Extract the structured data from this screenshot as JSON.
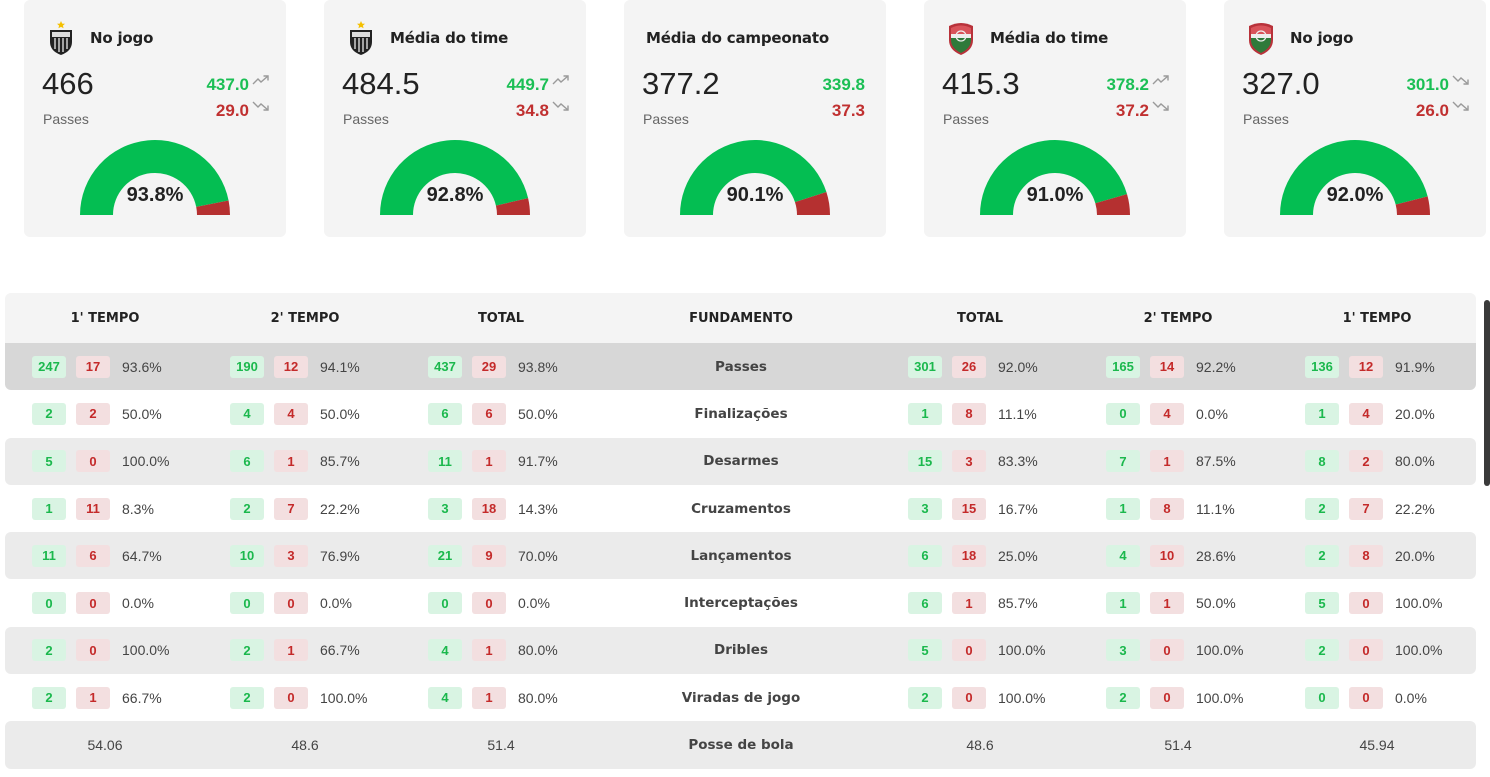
{
  "colors": {
    "good": "#1bbf55",
    "bad": "#c03030",
    "gauge_good": "#04be52",
    "gauge_bad": "#b53030"
  },
  "cards": [
    {
      "team": "atletico-mg",
      "crest": "atletico-crest-icon",
      "title": "No jogo",
      "total": "466",
      "metric": "Passes",
      "good_value": "437.0",
      "bad_value": "29.0",
      "good_trend": "up",
      "bad_trend": "down",
      "accuracy_label": "93.8%",
      "accuracy": 93.8
    },
    {
      "team": "atletico-mg",
      "crest": "atletico-crest-icon",
      "title": "Média do time",
      "total": "484.5",
      "metric": "Passes",
      "good_value": "449.7",
      "bad_value": "34.8",
      "good_trend": "up",
      "bad_trend": "down",
      "accuracy_label": "92.8%",
      "accuracy": 92.8
    },
    {
      "team": null,
      "crest": null,
      "title": "Média do campeonato",
      "total": "377.2",
      "metric": "Passes",
      "good_value": "339.8",
      "bad_value": "37.3",
      "good_trend": null,
      "bad_trend": null,
      "accuracy_label": "90.1%",
      "accuracy": 90.1
    },
    {
      "team": "fluminense",
      "crest": "fluminense-crest-icon",
      "title": "Média do time",
      "total": "415.3",
      "metric": "Passes",
      "good_value": "378.2",
      "bad_value": "37.2",
      "good_trend": "up",
      "bad_trend": "down",
      "accuracy_label": "91.0%",
      "accuracy": 91.0
    },
    {
      "team": "fluminense",
      "crest": "fluminense-crest-icon",
      "title": "No jogo",
      "total": "327.0",
      "metric": "Passes",
      "good_value": "301.0",
      "bad_value": "26.0",
      "good_trend": "down",
      "bad_trend": "down",
      "accuracy_label": "92.0%",
      "accuracy": 92.0
    }
  ],
  "table": {
    "headers": [
      "1' TEMPO",
      "2' TEMPO",
      "TOTAL",
      "FUNDAMENTO",
      "TOTAL",
      "2' TEMPO",
      "1' TEMPO"
    ],
    "rows": [
      {
        "fundamento": "Passes",
        "highlight": true,
        "left": [
          {
            "g": "247",
            "r": "17",
            "p": "93.6%"
          },
          {
            "g": "190",
            "r": "12",
            "p": "94.1%"
          },
          {
            "g": "437",
            "r": "29",
            "p": "93.8%"
          }
        ],
        "right": [
          {
            "g": "301",
            "r": "26",
            "p": "92.0%"
          },
          {
            "g": "165",
            "r": "14",
            "p": "92.2%"
          },
          {
            "g": "136",
            "r": "12",
            "p": "91.9%"
          }
        ]
      },
      {
        "fundamento": "Finalizações",
        "left": [
          {
            "g": "2",
            "r": "2",
            "p": "50.0%"
          },
          {
            "g": "4",
            "r": "4",
            "p": "50.0%"
          },
          {
            "g": "6",
            "r": "6",
            "p": "50.0%"
          }
        ],
        "right": [
          {
            "g": "1",
            "r": "8",
            "p": "11.1%"
          },
          {
            "g": "0",
            "r": "4",
            "p": "0.0%"
          },
          {
            "g": "1",
            "r": "4",
            "p": "20.0%"
          }
        ]
      },
      {
        "fundamento": "Desarmes",
        "left": [
          {
            "g": "5",
            "r": "0",
            "p": "100.0%"
          },
          {
            "g": "6",
            "r": "1",
            "p": "85.7%"
          },
          {
            "g": "11",
            "r": "1",
            "p": "91.7%"
          }
        ],
        "right": [
          {
            "g": "15",
            "r": "3",
            "p": "83.3%"
          },
          {
            "g": "7",
            "r": "1",
            "p": "87.5%"
          },
          {
            "g": "8",
            "r": "2",
            "p": "80.0%"
          }
        ]
      },
      {
        "fundamento": "Cruzamentos",
        "left": [
          {
            "g": "1",
            "r": "11",
            "p": "8.3%"
          },
          {
            "g": "2",
            "r": "7",
            "p": "22.2%"
          },
          {
            "g": "3",
            "r": "18",
            "p": "14.3%"
          }
        ],
        "right": [
          {
            "g": "3",
            "r": "15",
            "p": "16.7%"
          },
          {
            "g": "1",
            "r": "8",
            "p": "11.1%"
          },
          {
            "g": "2",
            "r": "7",
            "p": "22.2%"
          }
        ]
      },
      {
        "fundamento": "Lançamentos",
        "left": [
          {
            "g": "11",
            "r": "6",
            "p": "64.7%"
          },
          {
            "g": "10",
            "r": "3",
            "p": "76.9%"
          },
          {
            "g": "21",
            "r": "9",
            "p": "70.0%"
          }
        ],
        "right": [
          {
            "g": "6",
            "r": "18",
            "p": "25.0%"
          },
          {
            "g": "4",
            "r": "10",
            "p": "28.6%"
          },
          {
            "g": "2",
            "r": "8",
            "p": "20.0%"
          }
        ]
      },
      {
        "fundamento": "Interceptações",
        "left": [
          {
            "g": "0",
            "r": "0",
            "p": "0.0%"
          },
          {
            "g": "0",
            "r": "0",
            "p": "0.0%"
          },
          {
            "g": "0",
            "r": "0",
            "p": "0.0%"
          }
        ],
        "right": [
          {
            "g": "6",
            "r": "1",
            "p": "85.7%"
          },
          {
            "g": "1",
            "r": "1",
            "p": "50.0%"
          },
          {
            "g": "5",
            "r": "0",
            "p": "100.0%"
          }
        ]
      },
      {
        "fundamento": "Dribles",
        "left": [
          {
            "g": "2",
            "r": "0",
            "p": "100.0%"
          },
          {
            "g": "2",
            "r": "1",
            "p": "66.7%"
          },
          {
            "g": "4",
            "r": "1",
            "p": "80.0%"
          }
        ],
        "right": [
          {
            "g": "5",
            "r": "0",
            "p": "100.0%"
          },
          {
            "g": "3",
            "r": "0",
            "p": "100.0%"
          },
          {
            "g": "2",
            "r": "0",
            "p": "100.0%"
          }
        ]
      },
      {
        "fundamento": "Viradas de jogo",
        "left": [
          {
            "g": "2",
            "r": "1",
            "p": "66.7%"
          },
          {
            "g": "2",
            "r": "0",
            "p": "100.0%"
          },
          {
            "g": "4",
            "r": "1",
            "p": "80.0%"
          }
        ],
        "right": [
          {
            "g": "2",
            "r": "0",
            "p": "100.0%"
          },
          {
            "g": "2",
            "r": "0",
            "p": "100.0%"
          },
          {
            "g": "0",
            "r": "0",
            "p": "0.0%"
          }
        ]
      }
    ],
    "possession": {
      "fundamento": "Posse de bola",
      "left": [
        "54.06",
        "48.6",
        "51.4"
      ],
      "right": [
        "48.6",
        "51.4",
        "45.94"
      ]
    }
  }
}
